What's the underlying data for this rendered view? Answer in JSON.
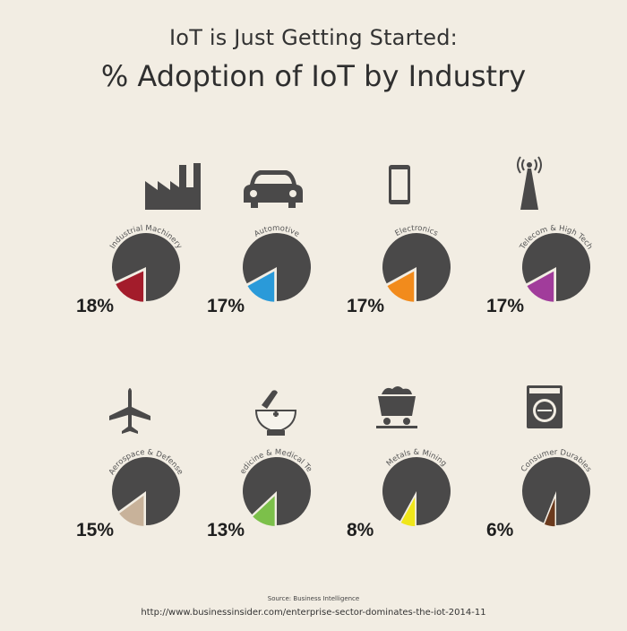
{
  "header": {
    "title_line1": "IoT is Just Getting Started:",
    "title_line2": "% Adoption of IoT by Industry"
  },
  "footer": {
    "source": "Source: Business Intelligence",
    "url": "http://www.businessinsider.com/enterprise-sector-dominates-the-iot-2014-11"
  },
  "chart_data": {
    "type": "pie",
    "title": "% Adoption of IoT by Industry",
    "categories": [
      "Industrial Machinery",
      "Automotive",
      "Electronics",
      "Telecom & High Tech",
      "Aerospace & Defense",
      "Medicine & Medical Tech",
      "Metals & Mining",
      "Consumer Durables"
    ],
    "values": [
      18,
      17,
      17,
      17,
      15,
      13,
      8,
      6
    ],
    "value_labels": [
      "18%",
      "17%",
      "17%",
      "17%",
      "15%",
      "13%",
      "8%",
      "6%"
    ],
    "colors": [
      "#a31c2b",
      "#2a9ad9",
      "#f28b1c",
      "#a13c9b",
      "#c8b29a",
      "#7cc04a",
      "#f0e61a",
      "#6b3a1d"
    ],
    "remainder_color": "#4a4949",
    "icons": [
      "factory-icon",
      "car-icon",
      "phone-icon",
      "antenna-icon",
      "airplane-icon",
      "mortar-pestle-icon",
      "mine-cart-icon",
      "washing-machine-icon"
    ]
  }
}
